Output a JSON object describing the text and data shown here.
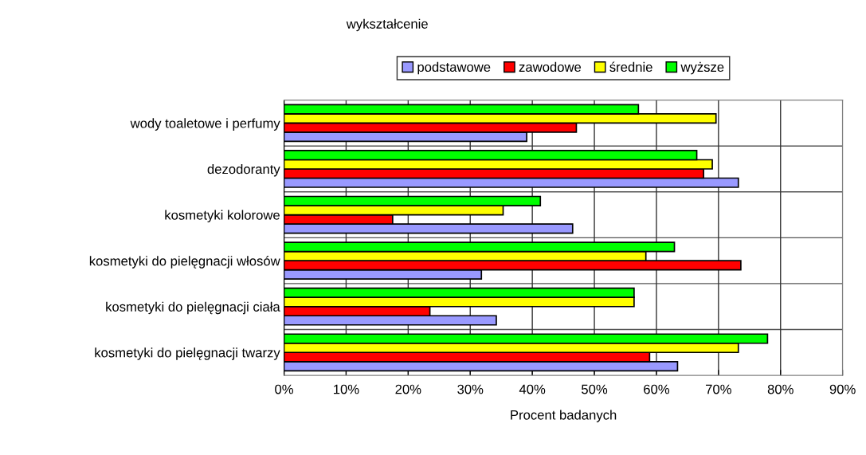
{
  "chart_data": {
    "type": "bar",
    "orientation": "horizontal",
    "xlabel": "Procent badanych",
    "legend_title": "wykształcenie",
    "legend": "top",
    "categories": [
      "wody toaletowe i perfumy",
      "dezodoranty",
      "kosmetyki kolorowe",
      "kosmetyki do pielęgnacji włosów",
      "kosmetyki do pielęgnacji ciała",
      "kosmetyki do pielęgnacji twarzy"
    ],
    "series": [
      {
        "name": "podstawowe",
        "color": "#9999ff",
        "values": [
          39.1,
          73.2,
          46.5,
          31.8,
          34.2,
          63.4
        ]
      },
      {
        "name": "zawodowe",
        "color": "#ff0000",
        "values": [
          47.1,
          67.6,
          17.5,
          73.6,
          23.5,
          58.9
        ]
      },
      {
        "name": "średnie",
        "color": "#ffff00",
        "values": [
          69.6,
          69.0,
          35.3,
          58.3,
          56.4,
          73.2
        ]
      },
      {
        "name": "wyższe",
        "color": "#00ff00",
        "values": [
          57.1,
          66.5,
          41.3,
          62.9,
          56.4,
          77.9
        ]
      }
    ],
    "xlim": [
      0,
      90
    ],
    "xticks": [
      {
        "value": 0,
        "label": "0%"
      },
      {
        "value": 10,
        "label": "10%"
      },
      {
        "value": 20,
        "label": "20%"
      },
      {
        "value": 30,
        "label": "30%"
      },
      {
        "value": 40,
        "label": "40%"
      },
      {
        "value": 50,
        "label": "50%"
      },
      {
        "value": 60,
        "label": "60%"
      },
      {
        "value": 70,
        "label": "70%"
      },
      {
        "value": 80,
        "label": "80%"
      },
      {
        "value": 90,
        "label": "90%"
      }
    ],
    "grid": true
  }
}
